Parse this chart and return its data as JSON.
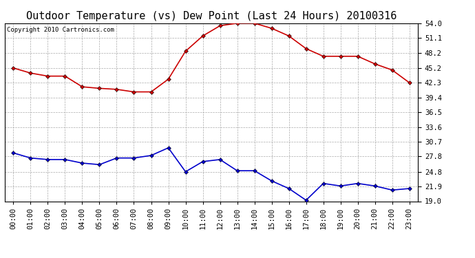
{
  "title": "Outdoor Temperature (vs) Dew Point (Last 24 Hours) 20100316",
  "copyright": "Copyright 2010 Cartronics.com",
  "x_labels": [
    "00:00",
    "01:00",
    "02:00",
    "03:00",
    "04:00",
    "05:00",
    "06:00",
    "07:00",
    "08:00",
    "09:00",
    "10:00",
    "11:00",
    "12:00",
    "13:00",
    "14:00",
    "15:00",
    "16:00",
    "17:00",
    "18:00",
    "19:00",
    "20:00",
    "21:00",
    "22:00",
    "23:00"
  ],
  "temp_values": [
    45.2,
    44.2,
    43.6,
    43.6,
    41.5,
    41.2,
    41.0,
    40.5,
    40.5,
    43.0,
    48.5,
    51.5,
    53.5,
    54.0,
    54.0,
    53.0,
    51.5,
    49.0,
    47.5,
    47.5,
    47.5,
    46.0,
    44.8,
    42.3
  ],
  "dew_values": [
    28.5,
    27.5,
    27.2,
    27.2,
    26.5,
    26.2,
    27.5,
    27.5,
    28.0,
    29.5,
    24.8,
    26.8,
    27.2,
    25.0,
    25.0,
    23.0,
    21.5,
    19.2,
    22.5,
    22.0,
    22.5,
    22.0,
    21.2,
    21.5
  ],
  "temp_color": "#cc0000",
  "dew_color": "#0000cc",
  "marker": "D",
  "marker_size": 3,
  "bg_color": "#ffffff",
  "plot_bg_color": "#ffffff",
  "grid_color": "#aaaaaa",
  "yticks": [
    19.0,
    21.9,
    24.8,
    27.8,
    30.7,
    33.6,
    36.5,
    39.4,
    42.3,
    45.2,
    48.2,
    51.1,
    54.0
  ],
  "ymin": 19.0,
  "ymax": 54.0,
  "title_fontsize": 11,
  "copyright_fontsize": 6.5,
  "tick_fontsize": 7.5,
  "line_width": 1.2
}
